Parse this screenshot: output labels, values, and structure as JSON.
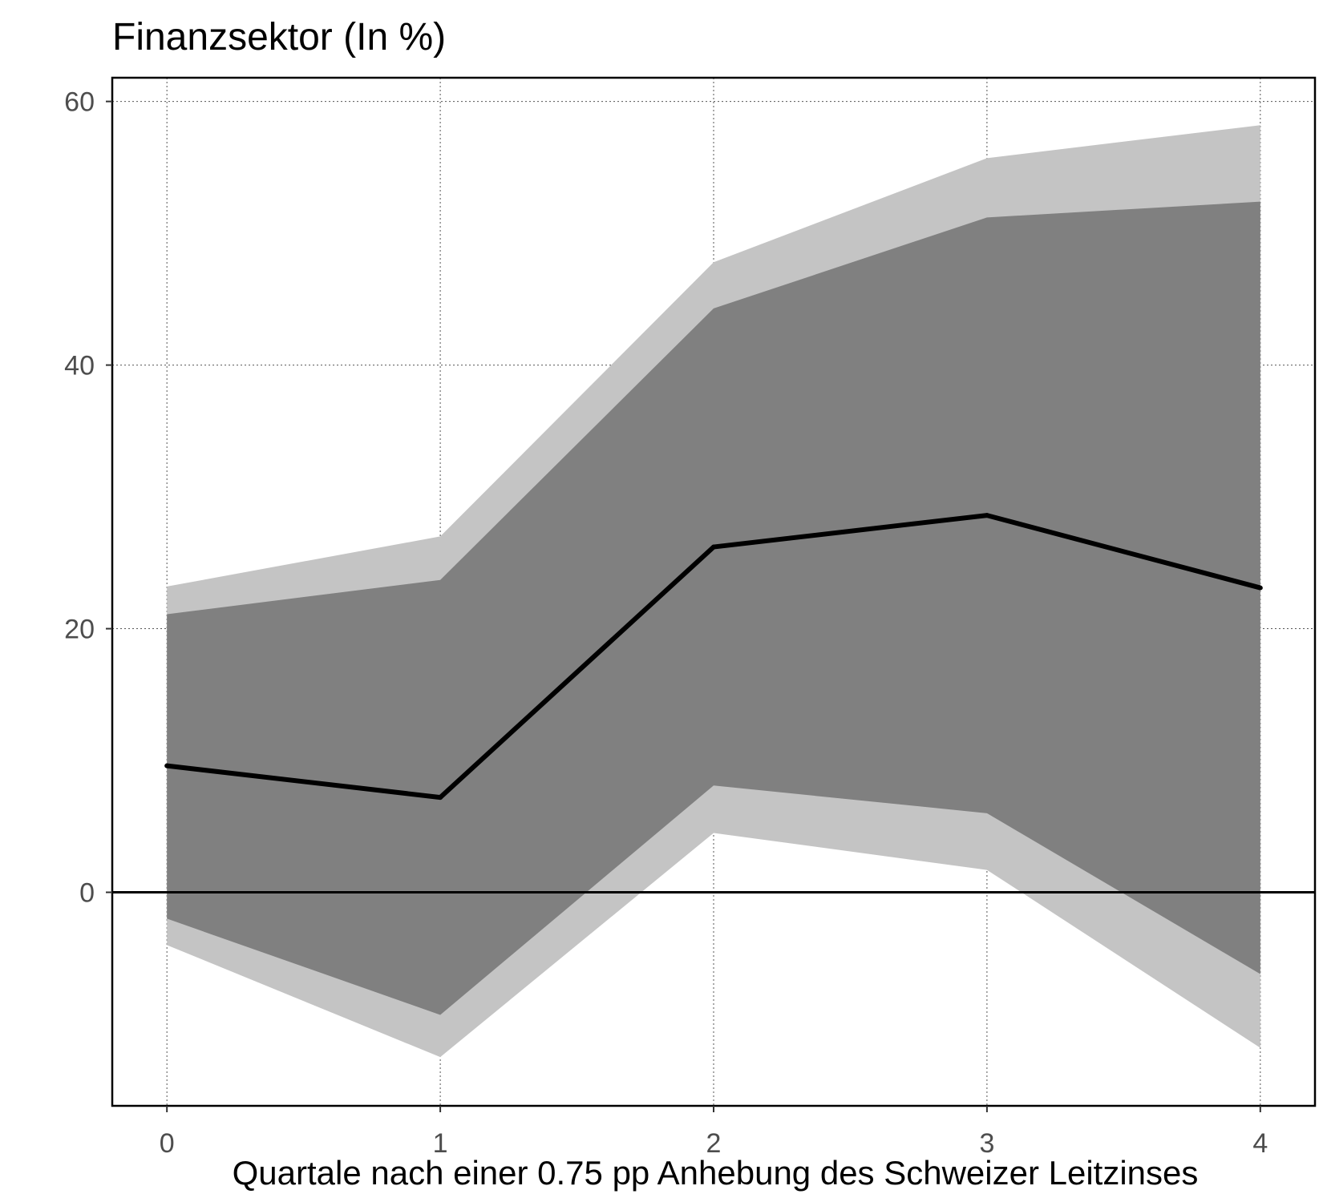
{
  "chart_data": {
    "type": "area",
    "title": "Finanzsektor (In %)",
    "xlabel": "Quartale nach einer 0.75 pp Anhebung des Schweizer Leitzinses",
    "ylabel": "",
    "x": [
      0,
      1,
      2,
      3,
      4
    ],
    "xticks": [
      "0",
      "1",
      "2",
      "3",
      "4"
    ],
    "yticks": [
      0,
      20,
      40,
      60
    ],
    "xlim": [
      -0.2,
      4.2
    ],
    "ylim": [
      -16.2,
      61.8
    ],
    "grid": true,
    "zero_line": true,
    "series": [
      {
        "name": "outer band upper",
        "role": "band_outer_upper",
        "values": [
          23.2,
          27.0,
          47.8,
          55.7,
          58.2
        ]
      },
      {
        "name": "outer band lower",
        "role": "band_outer_lower",
        "values": [
          -4.0,
          -12.5,
          4.5,
          1.7,
          -11.8
        ]
      },
      {
        "name": "inner band upper",
        "role": "band_inner_upper",
        "values": [
          21.1,
          23.7,
          44.3,
          51.2,
          52.4
        ]
      },
      {
        "name": "inner band lower",
        "role": "band_inner_lower",
        "values": [
          -2.0,
          -9.3,
          8.1,
          6.0,
          -6.2
        ]
      },
      {
        "name": "median",
        "role": "median",
        "values": [
          9.6,
          7.2,
          26.2,
          28.6,
          23.1
        ]
      }
    ],
    "colors": {
      "outer_band": "#c4c4c4",
      "inner_band": "#808080",
      "median_line": "#000000",
      "zero_line": "#000000",
      "frame": "#000000"
    }
  }
}
